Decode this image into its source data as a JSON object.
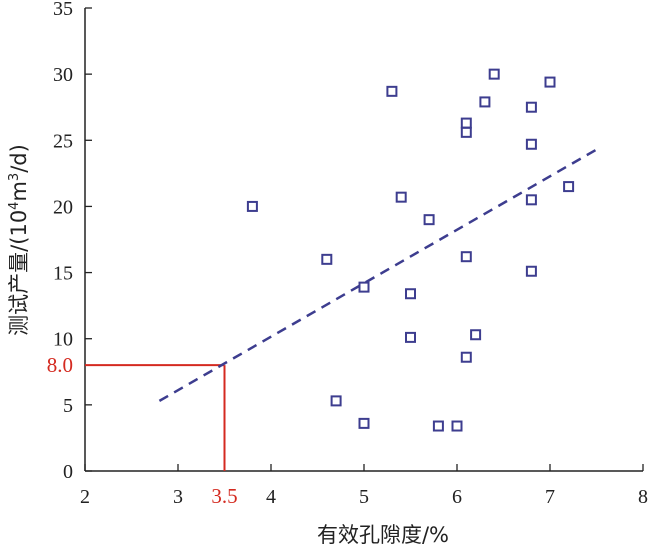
{
  "chart_data": {
    "type": "scatter",
    "title": "",
    "xlabel": "有效孔隙度/%",
    "ylabel_main": "测试产量/",
    "ylabel_unit_parts": [
      "(10",
      "4",
      "m",
      "3",
      "/d)"
    ],
    "xlim": [
      2,
      8
    ],
    "ylim": [
      0,
      35
    ],
    "xticks": [
      2,
      3,
      4,
      5,
      6,
      7,
      8
    ],
    "yticks": [
      0,
      5,
      10,
      15,
      20,
      25,
      30,
      35
    ],
    "marker": "open-square",
    "marker_color": "#3d3d8f",
    "points": [
      {
        "x": 3.8,
        "y": 20.0
      },
      {
        "x": 4.6,
        "y": 16.0
      },
      {
        "x": 4.7,
        "y": 5.3
      },
      {
        "x": 5.0,
        "y": 13.9
      },
      {
        "x": 5.0,
        "y": 3.6
      },
      {
        "x": 5.3,
        "y": 28.7
      },
      {
        "x": 5.4,
        "y": 20.7
      },
      {
        "x": 5.5,
        "y": 13.4
      },
      {
        "x": 5.5,
        "y": 10.1
      },
      {
        "x": 5.7,
        "y": 19.0
      },
      {
        "x": 5.8,
        "y": 3.4
      },
      {
        "x": 6.0,
        "y": 3.4
      },
      {
        "x": 6.1,
        "y": 26.3
      },
      {
        "x": 6.1,
        "y": 25.6
      },
      {
        "x": 6.1,
        "y": 16.2
      },
      {
        "x": 6.1,
        "y": 8.6
      },
      {
        "x": 6.2,
        "y": 10.3
      },
      {
        "x": 6.3,
        "y": 27.9
      },
      {
        "x": 6.4,
        "y": 30.0
      },
      {
        "x": 6.8,
        "y": 27.5
      },
      {
        "x": 6.8,
        "y": 24.7
      },
      {
        "x": 6.8,
        "y": 20.5
      },
      {
        "x": 6.8,
        "y": 15.1
      },
      {
        "x": 7.0,
        "y": 29.4
      },
      {
        "x": 7.2,
        "y": 21.5
      }
    ],
    "trendline": {
      "style": "dashed",
      "color": "#3d3d8f",
      "x": [
        2.8,
        7.5
      ],
      "y": [
        5.3,
        24.3
      ]
    },
    "reference": {
      "x": 3.5,
      "y": 8.0,
      "x_label": "3.5",
      "y_label": "8.0",
      "color": "#d42a20"
    },
    "grid": false,
    "legend": "none"
  }
}
